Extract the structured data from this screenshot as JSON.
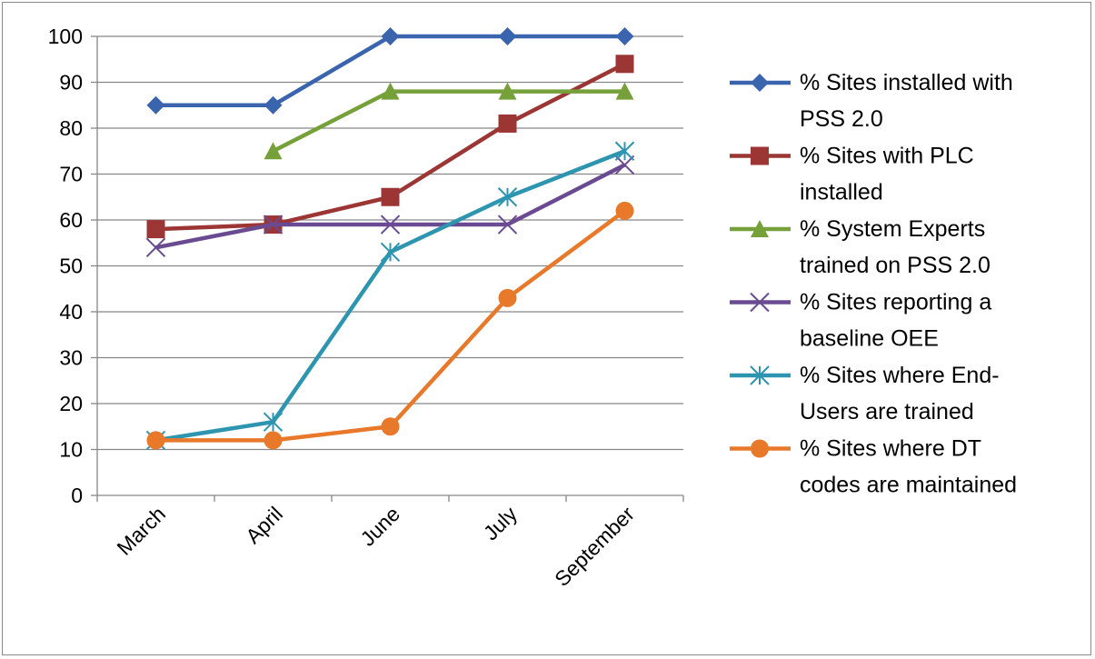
{
  "chart_data": {
    "type": "line",
    "title": "",
    "xlabel": "",
    "ylabel": "",
    "categories": [
      "March",
      "April",
      "June",
      "July",
      "September"
    ],
    "ylim": [
      0,
      100
    ],
    "yticks": [
      0,
      10,
      20,
      30,
      40,
      50,
      60,
      70,
      80,
      90,
      100
    ],
    "grid": "horizontal",
    "legend_position": "right",
    "series": [
      {
        "name": "% Sites installed with PSS 2.0",
        "legend_lines": [
          "% Sites installed with",
          "PSS 2.0"
        ],
        "color": "#3A64AD",
        "marker": "diamond",
        "values": [
          85,
          85,
          100,
          100,
          100
        ]
      },
      {
        "name": "% Sites with PLC installed",
        "legend_lines": [
          "% Sites with PLC",
          "installed"
        ],
        "color": "#9C3634",
        "marker": "square",
        "values": [
          58,
          59,
          65,
          81,
          94
        ]
      },
      {
        "name": "% System Experts trained on PSS 2.0",
        "legend_lines": [
          "% System Experts",
          "trained on PSS 2.0"
        ],
        "color": "#76A13A",
        "marker": "triangle",
        "values": [
          null,
          75,
          88,
          88,
          88
        ]
      },
      {
        "name": "% Sites reporting a baseline OEE",
        "legend_lines": [
          "% Sites reporting a",
          "baseline OEE"
        ],
        "color": "#6A4B91",
        "marker": "x",
        "values": [
          54,
          59,
          59,
          59,
          72
        ]
      },
      {
        "name": "% Sites where End-Users are trained",
        "legend_lines": [
          "% Sites where End-",
          "Users are trained"
        ],
        "color": "#2D95AF",
        "marker": "star",
        "values": [
          12,
          16,
          53,
          65,
          75
        ]
      },
      {
        "name": "% Sites where DT codes are maintained",
        "legend_lines": [
          "% Sites where DT",
          "codes are maintained"
        ],
        "color": "#E8792B",
        "marker": "circle",
        "values": [
          12,
          12,
          15,
          43,
          62
        ]
      }
    ]
  }
}
